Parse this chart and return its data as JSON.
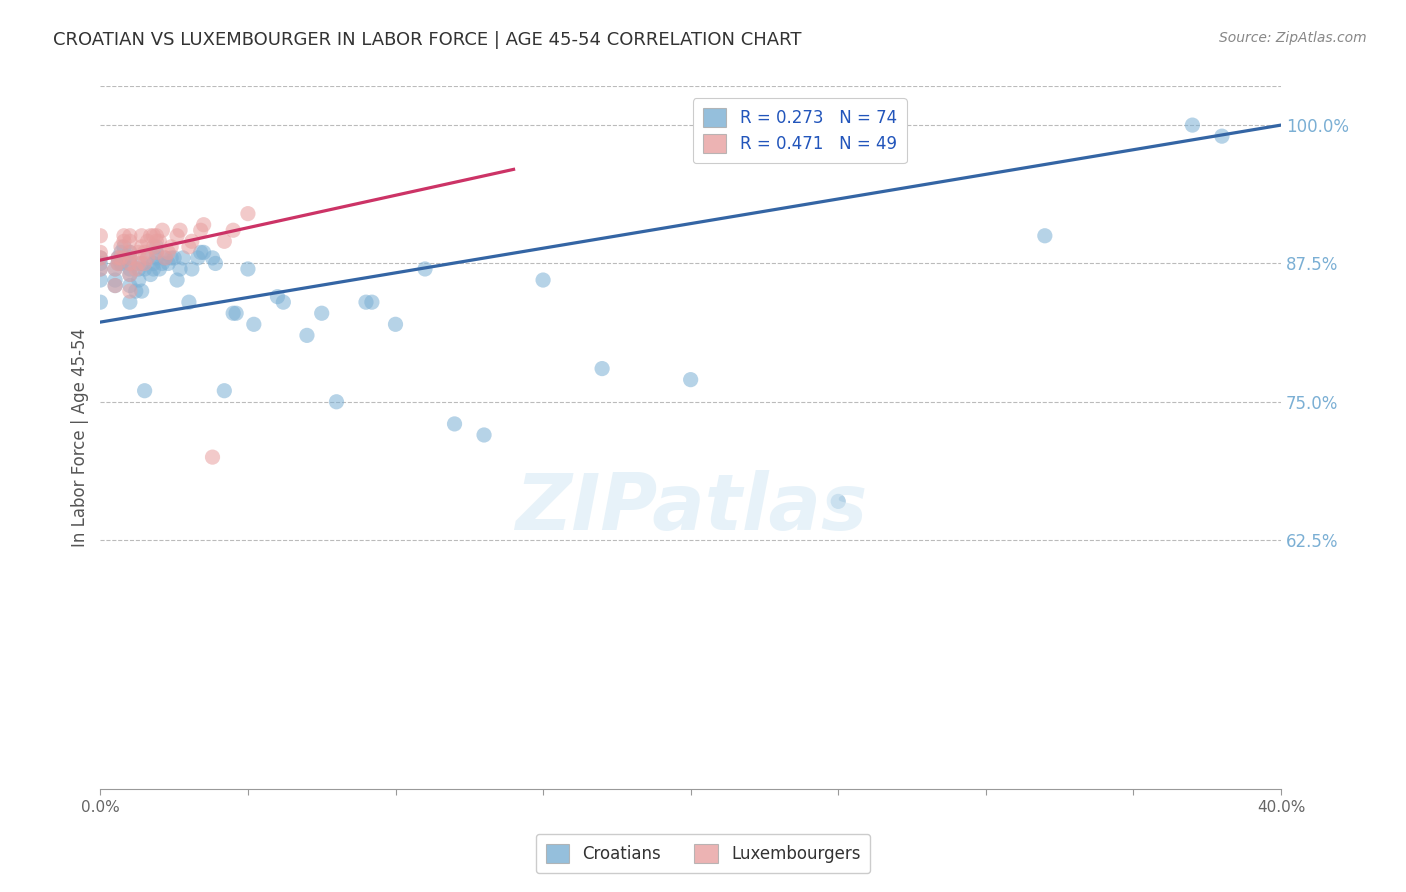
{
  "title": "CROATIAN VS LUXEMBOURGER IN LABOR FORCE | AGE 45-54 CORRELATION CHART",
  "source": "Source: ZipAtlas.com",
  "ylabel": "In Labor Force | Age 45-54",
  "watermark": "ZIPatlas",
  "xlim": [
    0.0,
    0.4
  ],
  "ylim": [
    0.4,
    1.035
  ],
  "xticks": [
    0.0,
    0.05,
    0.1,
    0.15,
    0.2,
    0.25,
    0.3,
    0.35,
    0.4
  ],
  "yticks": [
    0.625,
    0.75,
    0.875,
    1.0
  ],
  "ytick_labels": [
    "62.5%",
    "75.0%",
    "87.5%",
    "100.0%"
  ],
  "xtick_labels": [
    "0.0%",
    "",
    "",
    "",
    "",
    "",
    "",
    "",
    "40.0%"
  ],
  "blue_R": 0.273,
  "blue_N": 74,
  "pink_R": 0.471,
  "pink_N": 49,
  "blue_color": "#7bafd4",
  "pink_color": "#e8a0a0",
  "blue_line_color": "#3465a4",
  "pink_line_color": "#cc3366",
  "grid_color": "#bbbbbb",
  "blue_line_x": [
    0.0,
    0.4
  ],
  "blue_line_y": [
    0.822,
    1.0
  ],
  "pink_line_x": [
    0.0,
    0.14
  ],
  "pink_line_y": [
    0.878,
    0.96
  ],
  "blue_x": [
    0.0,
    0.0,
    0.0,
    0.0,
    0.0,
    0.005,
    0.005,
    0.005,
    0.006,
    0.006,
    0.007,
    0.007,
    0.008,
    0.008,
    0.01,
    0.01,
    0.01,
    0.01,
    0.01,
    0.01,
    0.01,
    0.012,
    0.013,
    0.013,
    0.014,
    0.014,
    0.015,
    0.015,
    0.016,
    0.017,
    0.018,
    0.018,
    0.019,
    0.019,
    0.019,
    0.02,
    0.021,
    0.022,
    0.023,
    0.024,
    0.025,
    0.026,
    0.027,
    0.028,
    0.03,
    0.031,
    0.033,
    0.034,
    0.035,
    0.038,
    0.039,
    0.042,
    0.045,
    0.046,
    0.05,
    0.052,
    0.06,
    0.062,
    0.07,
    0.075,
    0.08,
    0.09,
    0.092,
    0.1,
    0.11,
    0.12,
    0.13,
    0.15,
    0.17,
    0.2,
    0.25,
    0.32,
    0.37,
    0.38
  ],
  "blue_y": [
    0.86,
    0.87,
    0.875,
    0.88,
    0.84,
    0.855,
    0.86,
    0.87,
    0.875,
    0.88,
    0.875,
    0.885,
    0.88,
    0.89,
    0.84,
    0.855,
    0.865,
    0.87,
    0.875,
    0.88,
    0.885,
    0.85,
    0.86,
    0.87,
    0.875,
    0.85,
    0.76,
    0.87,
    0.88,
    0.865,
    0.87,
    0.875,
    0.88,
    0.885,
    0.89,
    0.87,
    0.875,
    0.88,
    0.875,
    0.88,
    0.88,
    0.86,
    0.87,
    0.88,
    0.84,
    0.87,
    0.88,
    0.885,
    0.885,
    0.88,
    0.875,
    0.76,
    0.83,
    0.83,
    0.87,
    0.82,
    0.845,
    0.84,
    0.81,
    0.83,
    0.75,
    0.84,
    0.84,
    0.82,
    0.87,
    0.73,
    0.72,
    0.86,
    0.78,
    0.77,
    0.66,
    0.9,
    1.0,
    0.99
  ],
  "pink_x": [
    0.0,
    0.0,
    0.0,
    0.0,
    0.005,
    0.005,
    0.006,
    0.006,
    0.007,
    0.007,
    0.008,
    0.008,
    0.01,
    0.01,
    0.01,
    0.01,
    0.01,
    0.01,
    0.01,
    0.012,
    0.013,
    0.013,
    0.014,
    0.014,
    0.015,
    0.015,
    0.016,
    0.016,
    0.017,
    0.018,
    0.018,
    0.019,
    0.019,
    0.019,
    0.02,
    0.021,
    0.022,
    0.023,
    0.024,
    0.026,
    0.027,
    0.03,
    0.031,
    0.034,
    0.035,
    0.038,
    0.042,
    0.045,
    0.05
  ],
  "pink_y": [
    0.88,
    0.885,
    0.9,
    0.87,
    0.855,
    0.87,
    0.875,
    0.88,
    0.88,
    0.89,
    0.895,
    0.9,
    0.85,
    0.865,
    0.875,
    0.88,
    0.885,
    0.895,
    0.9,
    0.87,
    0.875,
    0.885,
    0.89,
    0.9,
    0.875,
    0.885,
    0.88,
    0.895,
    0.9,
    0.89,
    0.9,
    0.885,
    0.895,
    0.9,
    0.895,
    0.905,
    0.88,
    0.885,
    0.89,
    0.9,
    0.905,
    0.89,
    0.895,
    0.905,
    0.91,
    0.7,
    0.895,
    0.905,
    0.92
  ],
  "marker_size": 120,
  "marker_alpha": 0.55
}
